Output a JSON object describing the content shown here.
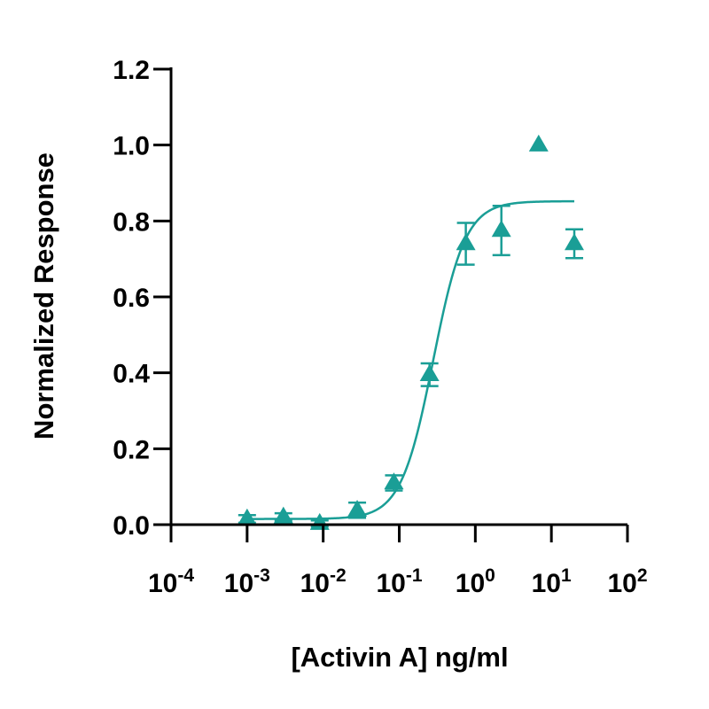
{
  "chart_data": {
    "type": "scatter",
    "title": "",
    "xlabel": "[Activin A] ng/ml",
    "ylabel": "Normalized Response",
    "x_scale": "log10",
    "xlim": [
      0.0001,
      100
    ],
    "ylim": [
      0,
      1.2
    ],
    "x_ticks": [
      {
        "value": 0.0001,
        "base": "10",
        "exp": "-4"
      },
      {
        "value": 0.001,
        "base": "10",
        "exp": "-3"
      },
      {
        "value": 0.01,
        "base": "10",
        "exp": "-2"
      },
      {
        "value": 0.1,
        "base": "10",
        "exp": "-1"
      },
      {
        "value": 1,
        "base": "10",
        "exp": "0"
      },
      {
        "value": 10,
        "base": "10",
        "exp": "1"
      },
      {
        "value": 100,
        "base": "10",
        "exp": "2"
      }
    ],
    "y_ticks": [
      "0.0",
      "0.2",
      "0.4",
      "0.6",
      "0.8",
      "1.0",
      "1.2"
    ],
    "grid": false,
    "legend": "none",
    "color": "#1a9e96",
    "marker": "triangle",
    "series": [
      {
        "points": [
          {
            "x": 0.001,
            "y": 0.015,
            "err": 0.01
          },
          {
            "x": 0.003,
            "y": 0.02,
            "err": 0.01
          },
          {
            "x": 0.009,
            "y": 0.003,
            "err": 0.008
          },
          {
            "x": 0.028,
            "y": 0.038,
            "err": 0.02
          },
          {
            "x": 0.085,
            "y": 0.11,
            "err": 0.02
          },
          {
            "x": 0.25,
            "y": 0.395,
            "err": 0.03
          },
          {
            "x": 0.75,
            "y": 0.74,
            "err": 0.055
          },
          {
            "x": 2.2,
            "y": 0.775,
            "err": 0.065
          },
          {
            "x": 6.8,
            "y": 1.0,
            "err": 0
          },
          {
            "x": 20,
            "y": 0.74,
            "err": 0.038
          }
        ],
        "fit": {
          "model": "4PL",
          "bottom": 0.015,
          "top": 0.852,
          "ec50": 0.28,
          "hill": 2.05,
          "x_range": [
            0.001,
            20
          ]
        }
      }
    ]
  }
}
